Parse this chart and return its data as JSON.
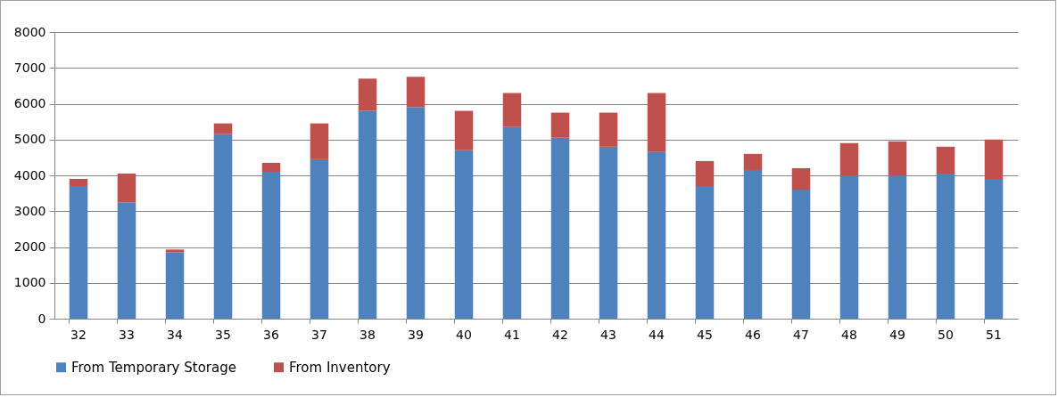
{
  "chart_data": {
    "type": "bar",
    "stacked": true,
    "categories": [
      "32",
      "33",
      "34",
      "35",
      "36",
      "37",
      "38",
      "39",
      "40",
      "41",
      "42",
      "43",
      "44",
      "45",
      "46",
      "47",
      "48",
      "49",
      "50",
      "51"
    ],
    "series": [
      {
        "name": "From Temporary Storage",
        "color": "#4f81bd",
        "values": [
          3700,
          3250,
          1850,
          5150,
          4100,
          4450,
          5800,
          5900,
          4700,
          5350,
          5050,
          4800,
          4650,
          3700,
          4150,
          3600,
          4000,
          4000,
          4050,
          3900
        ]
      },
      {
        "name": "From Inventory",
        "color": "#c0504d",
        "values": [
          200,
          800,
          80,
          300,
          250,
          1000,
          900,
          850,
          1100,
          950,
          700,
          950,
          1650,
          700,
          450,
          600,
          900,
          950,
          750,
          1100
        ]
      }
    ],
    "ylim": [
      0,
      8000
    ],
    "yticks": [
      0,
      1000,
      2000,
      3000,
      4000,
      5000,
      6000,
      7000,
      8000
    ],
    "grid": "y",
    "legend": "bottom"
  }
}
